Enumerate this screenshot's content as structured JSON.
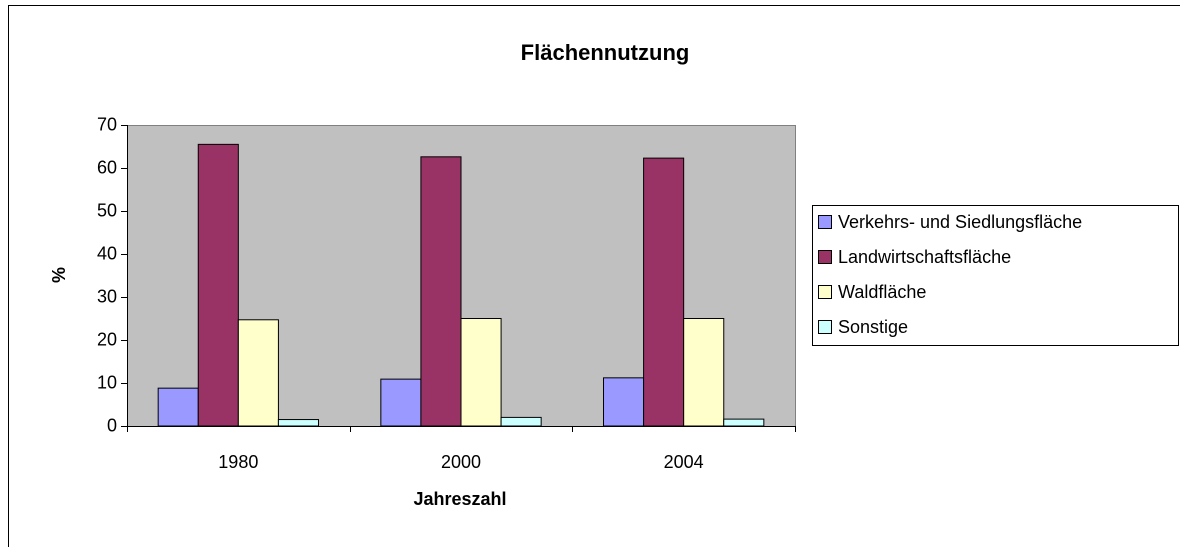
{
  "chart_data": {
    "type": "bar",
    "title": "Flächennutzung",
    "x_label": "Jahreszahl",
    "y_label": "%",
    "categories": [
      "1980",
      "2000",
      "2004"
    ],
    "series": [
      {
        "name": "Verkehrs- und Siedlungsfläche",
        "color": "#9999ff",
        "values": [
          8.8,
          10.9,
          11.2
        ]
      },
      {
        "name": "Landwirtschaftsfläche",
        "color": "#993366",
        "values": [
          65.5,
          62.6,
          62.3
        ]
      },
      {
        "name": "Waldfläche",
        "color": "#ffffcc",
        "values": [
          24.7,
          25.0,
          25.0
        ]
      },
      {
        "name": "Sonstige",
        "color": "#ccffff",
        "values": [
          1.5,
          2.0,
          1.6
        ]
      }
    ],
    "ylim": [
      0,
      70
    ],
    "yticks": [
      0,
      10,
      20,
      30,
      40,
      50,
      60,
      70
    ],
    "grid": false,
    "legend": "right",
    "plot_background": "#c0c0c0"
  }
}
